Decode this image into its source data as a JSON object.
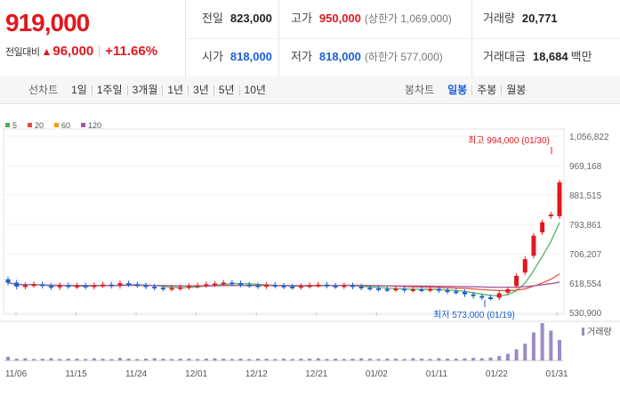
{
  "quote": {
    "price": "919,000",
    "change_label": "전일대비",
    "change_symbol": "▲",
    "change_value": "96,000",
    "change_pct": "+11.66%"
  },
  "stats": {
    "prev_label": "전일",
    "prev_value": "823,000",
    "high_label": "고가",
    "high_value": "950,000",
    "upper_limit": "(상한가 1,069,000)",
    "volume_label": "거래량",
    "volume_value": "20,771",
    "open_label": "시가",
    "open_value": "818,000",
    "low_label": "저가",
    "low_value": "818,000",
    "lower_limit": "(하한가 577,000)",
    "amount_label": "거래대금",
    "amount_value": "18,684",
    "amount_unit": "백만"
  },
  "toolbar": {
    "line_label": "선차트",
    "line_periods": [
      "1일",
      "1주일",
      "3개월",
      "1년",
      "3년",
      "5년",
      "10년"
    ],
    "candle_label": "봉차트",
    "candle_periods": [
      "일봉",
      "주봉",
      "월봉"
    ],
    "candle_active": "일봉"
  },
  "chart_data": {
    "type": "candlestick",
    "ma_legend": [
      {
        "name": "5",
        "color": "#4caf50"
      },
      {
        "name": "20",
        "color": "#e74c3c"
      },
      {
        "name": "60",
        "color": "#f39c12"
      },
      {
        "name": "120",
        "color": "#9b59b6"
      }
    ],
    "y_ticks": [
      "1,056,822",
      "969,168",
      "881,515",
      "793,861",
      "706,207",
      "618,554",
      "530,900"
    ],
    "ylim": [
      530900,
      1056822
    ],
    "x_ticks": [
      "11/06",
      "11/15",
      "11/24",
      "12/01",
      "12/12",
      "12/21",
      "01/02",
      "01/11",
      "01/22",
      "01/31"
    ],
    "max_annotation": "최고 994,000 (01/30)",
    "min_annotation": "최저 573,000 (01/19)",
    "volume_label": "거래량",
    "candles_close": [
      620000,
      608000,
      612000,
      615000,
      610000,
      606000,
      612000,
      609000,
      611000,
      607000,
      612000,
      614000,
      610000,
      618000,
      615000,
      612000,
      608000,
      605000,
      602000,
      604000,
      606000,
      610000,
      612000,
      615000,
      617000,
      620000,
      618000,
      614000,
      612000,
      609000,
      613000,
      611000,
      608000,
      607000,
      610000,
      612000,
      614000,
      611000,
      609000,
      612000,
      608000,
      605000,
      603000,
      601000,
      600000,
      602000,
      598000,
      600000,
      599000,
      601000,
      597000,
      594000,
      592000,
      585000,
      580000,
      576000,
      575000,
      588000,
      600000,
      640000,
      690000,
      760000,
      800000,
      823000,
      919000
    ],
    "candles_open": [
      630000,
      620000,
      608000,
      612000,
      615000,
      610000,
      606000,
      612000,
      609000,
      611000,
      607000,
      612000,
      614000,
      610000,
      618000,
      615000,
      612000,
      608000,
      605000,
      602000,
      604000,
      606000,
      610000,
      612000,
      615000,
      617000,
      620000,
      618000,
      614000,
      612000,
      609000,
      613000,
      611000,
      608000,
      607000,
      610000,
      612000,
      614000,
      611000,
      609000,
      612000,
      608000,
      605000,
      603000,
      601000,
      600000,
      602000,
      598000,
      600000,
      599000,
      601000,
      597000,
      594000,
      592000,
      585000,
      580000,
      576000,
      575000,
      590000,
      610000,
      650000,
      700000,
      770000,
      818000,
      818000
    ],
    "volume_levels": [
      0.1,
      0.05,
      0.06,
      0.04,
      0.05,
      0.06,
      0.04,
      0.05,
      0.05,
      0.04,
      0.06,
      0.05,
      0.04,
      0.07,
      0.05,
      0.04,
      0.05,
      0.06,
      0.05,
      0.04,
      0.05,
      0.05,
      0.04,
      0.05,
      0.06,
      0.05,
      0.04,
      0.05,
      0.04,
      0.05,
      0.05,
      0.04,
      0.05,
      0.04,
      0.05,
      0.05,
      0.06,
      0.04,
      0.05,
      0.04,
      0.05,
      0.06,
      0.05,
      0.04,
      0.05,
      0.05,
      0.04,
      0.06,
      0.05,
      0.04,
      0.06,
      0.05,
      0.05,
      0.06,
      0.07,
      0.06,
      0.08,
      0.12,
      0.18,
      0.3,
      0.45,
      0.75,
      1.0,
      0.8,
      0.55
    ]
  }
}
